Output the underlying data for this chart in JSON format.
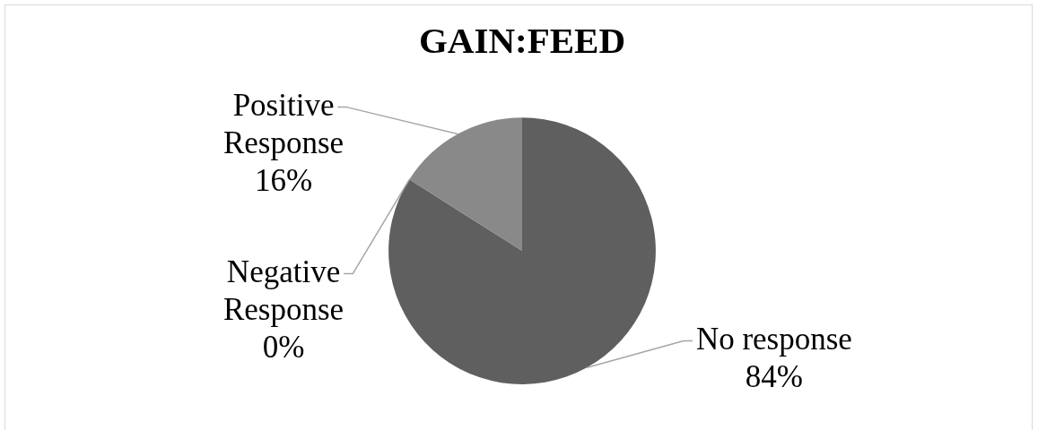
{
  "chart_data": {
    "type": "pie",
    "title": "GAIN:FEED",
    "categories": [
      "No response",
      "Negative Response",
      "Positive Response"
    ],
    "values": [
      84,
      0,
      16
    ],
    "value_labels": [
      "84%",
      "0%",
      "16%"
    ],
    "colors": [
      "#5f5f5f",
      "#747474",
      "#898989"
    ]
  }
}
